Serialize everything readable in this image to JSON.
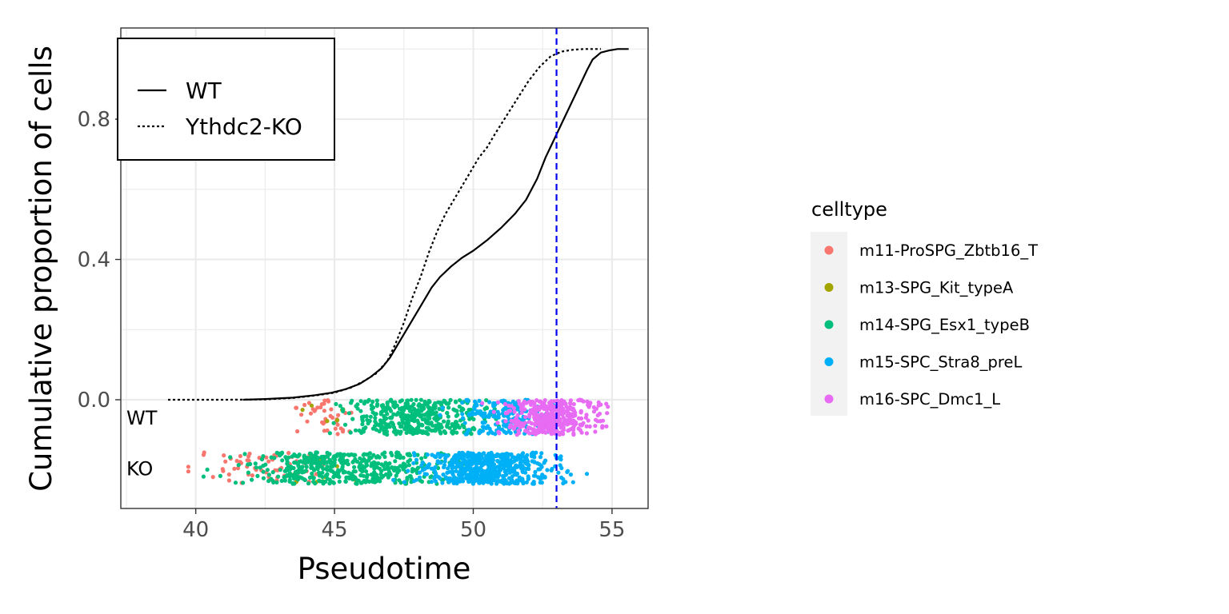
{
  "chart_data": {
    "type": "line",
    "title": "",
    "xlabel": "Pseudotime",
    "ylabel": "Cumulative proportion of cells",
    "xlim": [
      37.3,
      56.3
    ],
    "ylim": [
      -0.31,
      1.06
    ],
    "x_ticks": [
      40,
      45,
      50,
      55
    ],
    "x_tick_labels": [
      "40",
      "45",
      "50",
      "55"
    ],
    "y_ticks": [
      0.0,
      0.4,
      0.8
    ],
    "y_tick_labels": [
      "0.0",
      "0.4",
      "0.8"
    ],
    "grid": true,
    "threshold_line": {
      "axis": "x",
      "value": 53.0,
      "color": "#0000ee",
      "style": "dashed"
    },
    "line_legend": {
      "placement": "top-left",
      "entries": [
        {
          "label": "WT",
          "style": "solid"
        },
        {
          "label": "Ythdc2-KO",
          "style": "dotted"
        }
      ]
    },
    "series": [
      {
        "name": "WT",
        "style": "solid",
        "x": [
          41.7,
          42.5,
          43.5,
          44.3,
          44.9,
          45.4,
          45.9,
          46.3,
          46.7,
          47.0,
          47.3,
          47.6,
          47.9,
          48.2,
          48.5,
          48.8,
          49.2,
          49.6,
          50.0,
          50.5,
          51.0,
          51.5,
          51.9,
          52.3,
          52.6,
          52.9,
          53.2,
          53.5,
          53.8,
          54.1,
          54.3,
          54.6,
          54.9,
          55.2,
          55.6
        ],
        "y": [
          0.0,
          0.002,
          0.006,
          0.013,
          0.02,
          0.03,
          0.045,
          0.065,
          0.09,
          0.12,
          0.16,
          0.2,
          0.24,
          0.28,
          0.32,
          0.35,
          0.38,
          0.405,
          0.425,
          0.455,
          0.49,
          0.53,
          0.57,
          0.63,
          0.69,
          0.74,
          0.79,
          0.84,
          0.89,
          0.94,
          0.97,
          0.99,
          0.996,
          1.0,
          1.0
        ]
      },
      {
        "name": "Ythdc2-KO",
        "style": "dotted",
        "x": [
          39.0,
          41.0,
          42.5,
          43.5,
          44.3,
          45.0,
          45.6,
          46.1,
          46.5,
          46.9,
          47.2,
          47.5,
          47.8,
          48.1,
          48.4,
          48.7,
          49.0,
          49.3,
          49.6,
          49.9,
          50.2,
          50.5,
          50.8,
          51.2,
          51.6,
          52.0,
          52.4,
          52.8,
          53.2,
          53.6,
          54.0,
          54.6
        ],
        "y": [
          0.0,
          0.0,
          0.001,
          0.005,
          0.012,
          0.02,
          0.035,
          0.055,
          0.075,
          0.11,
          0.16,
          0.22,
          0.29,
          0.35,
          0.42,
          0.48,
          0.53,
          0.57,
          0.61,
          0.65,
          0.69,
          0.72,
          0.76,
          0.81,
          0.86,
          0.91,
          0.95,
          0.98,
          0.993,
          0.998,
          1.0,
          1.0
        ]
      }
    ],
    "point_rows": [
      {
        "label": "WT",
        "y_range": [
          -0.1,
          0.0
        ]
      },
      {
        "label": "KO",
        "y_range": [
          -0.24,
          -0.15
        ]
      }
    ],
    "point_legend": {
      "title": "celltype",
      "placement": "right",
      "entries": [
        {
          "label": "m11-ProSPG_Zbtb16_T",
          "color": "#F8766D"
        },
        {
          "label": "m13-SPG_Kit_typeA",
          "color": "#A3A500"
        },
        {
          "label": "m14-SPG_Esx1_typeB",
          "color": "#00BF7D"
        },
        {
          "label": "m15-SPC_Stra8_preL",
          "color": "#00B0F6"
        },
        {
          "label": "m16-SPC_Dmc1_L",
          "color": "#E76BF3"
        }
      ]
    },
    "point_density": {
      "WT": [
        {
          "celltype": "m11-ProSPG_Zbtb16_T",
          "count": 40,
          "x_range": [
            42.8,
            46.5
          ]
        },
        {
          "celltype": "m13-SPG_Kit_typeA",
          "count": 6,
          "x_range": [
            42.5,
            46.5
          ]
        },
        {
          "celltype": "m14-SPG_Esx1_typeB",
          "count": 420,
          "x_range": [
            43.5,
            52.5
          ]
        },
        {
          "celltype": "m15-SPC_Stra8_preL",
          "count": 200,
          "x_range": [
            48.5,
            54.0
          ]
        },
        {
          "celltype": "m16-SPC_Dmc1_L",
          "count": 380,
          "x_range": [
            50.0,
            55.6
          ]
        }
      ],
      "KO": [
        {
          "celltype": "m11-ProSPG_Zbtb16_T",
          "count": 70,
          "x_range": [
            38.8,
            46.5
          ]
        },
        {
          "celltype": "m13-SPG_Kit_typeA",
          "count": 10,
          "x_range": [
            42.0,
            46.5
          ]
        },
        {
          "celltype": "m14-SPG_Esx1_typeB",
          "count": 480,
          "x_range": [
            39.6,
            51.5
          ]
        },
        {
          "celltype": "m15-SPC_Stra8_preL",
          "count": 560,
          "x_range": [
            46.5,
            54.5
          ]
        }
      ]
    }
  },
  "colors": {
    "threshold": "#0000ee",
    "grid": "#ebebeb",
    "panel_border": "#333333",
    "legend_key_bg": "#f2f2f2"
  }
}
